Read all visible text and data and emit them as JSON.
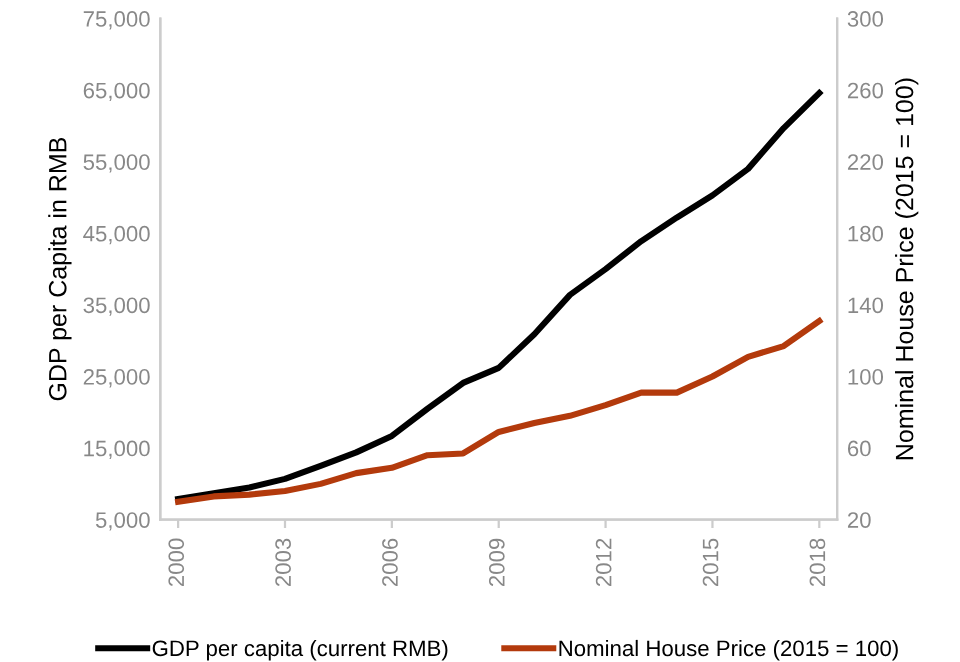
{
  "chart_data": {
    "type": "line",
    "categories": [
      "2000",
      null,
      null,
      "2003",
      null,
      null,
      "2006",
      null,
      null,
      "2009",
      null,
      null,
      "2012",
      null,
      null,
      "2015",
      null,
      null,
      "2018"
    ],
    "ylabel": "GDP per Capita in RMB",
    "y2label": "Nominal House Price (2015 = 100)",
    "ylim": [
      5000,
      75000
    ],
    "yticks": [
      {
        "value": 5000,
        "label": "5,000"
      },
      {
        "value": 15000,
        "label": "15,000"
      },
      {
        "value": 25000,
        "label": "25,000"
      },
      {
        "value": 35000,
        "label": "35,000"
      },
      {
        "value": 45000,
        "label": "45,000"
      },
      {
        "value": 55000,
        "label": "55,000"
      },
      {
        "value": 65000,
        "label": "65,000"
      },
      {
        "value": 75000,
        "label": "75,000"
      }
    ],
    "y2lim": [
      20,
      300
    ],
    "y2ticks": [
      20,
      60,
      100,
      140,
      180,
      220,
      260,
      300
    ],
    "series": [
      {
        "name": "GDP per capita (current RMB)",
        "color": "#000000",
        "values": [
          7900,
          8700,
          9500,
          10700,
          12500,
          14400,
          16700,
          20500,
          24100,
          26200,
          30900,
          36400,
          40000,
          43900,
          47200,
          50300,
          54000,
          59700,
          64600
        ]
      },
      {
        "name": "Nominal House Price (2015 = 100)",
        "color": "#b33a0c",
        "axis": "y2",
        "values": [
          30,
          33,
          34,
          36,
          40,
          46,
          49,
          56,
          57,
          69,
          74,
          78,
          84,
          91,
          91,
          100,
          111,
          117,
          131
        ]
      }
    ],
    "legend": "bottom",
    "grid": false,
    "marker": "none",
    "line_style": "solid"
  }
}
